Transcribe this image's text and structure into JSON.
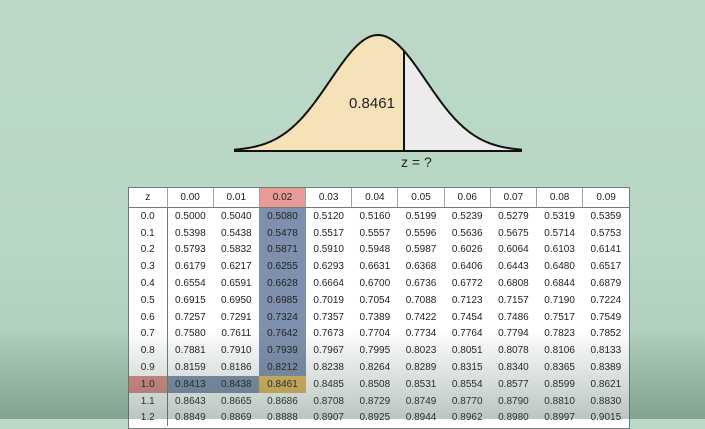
{
  "figure": {
    "area_value": "0.8461",
    "z_label": "z = ?",
    "colors": {
      "area_fill": "#f5e2b8",
      "tail_fill": "#ececec",
      "stroke": "#111111"
    }
  },
  "table": {
    "corner_label": "z",
    "columns": [
      "0.00",
      "0.01",
      "0.02",
      "0.03",
      "0.04",
      "0.05",
      "0.06",
      "0.07",
      "0.08",
      "0.09"
    ],
    "highlight_column": 2,
    "highlight_row": 10,
    "colors": {
      "highlight_band": "#7f8fae",
      "highlight_header": "#e89a96",
      "highlight_cell": "#e1b85e"
    },
    "rows": [
      {
        "z": "0.0",
        "values": [
          "0.5000",
          "0.5040",
          "0.5080",
          "0.5120",
          "0.5160",
          "0.5199",
          "0.5239",
          "0.5279",
          "0.5319",
          "0.5359"
        ]
      },
      {
        "z": "0.1",
        "values": [
          "0.5398",
          "0.5438",
          "0.5478",
          "0.5517",
          "0.5557",
          "0.5596",
          "0.5636",
          "0.5675",
          "0.5714",
          "0.5753"
        ]
      },
      {
        "z": "0.2",
        "values": [
          "0.5793",
          "0.5832",
          "0.5871",
          "0.5910",
          "0.5948",
          "0.5987",
          "0.6026",
          "0.6064",
          "0.6103",
          "0.6141"
        ]
      },
      {
        "z": "0.3",
        "values": [
          "0.6179",
          "0.6217",
          "0.6255",
          "0.6293",
          "0.6631",
          "0.6368",
          "0.6406",
          "0.6443",
          "0.6480",
          "0.6517"
        ]
      },
      {
        "z": "0.4",
        "values": [
          "0.6554",
          "0.6591",
          "0.6628",
          "0.6664",
          "0.6700",
          "0.6736",
          "0.6772",
          "0.6808",
          "0.6844",
          "0.6879"
        ]
      },
      {
        "z": "0.5",
        "values": [
          "0.6915",
          "0.6950",
          "0.6985",
          "0.7019",
          "0.7054",
          "0.7088",
          "0.7123",
          "0.7157",
          "0.7190",
          "0.7224"
        ]
      },
      {
        "z": "0.6",
        "values": [
          "0.7257",
          "0.7291",
          "0.7324",
          "0.7357",
          "0.7389",
          "0.7422",
          "0.7454",
          "0.7486",
          "0.7517",
          "0.7549"
        ]
      },
      {
        "z": "0.7",
        "values": [
          "0.7580",
          "0.7611",
          "0.7642",
          "0.7673",
          "0.7704",
          "0.7734",
          "0.7764",
          "0.7794",
          "0.7823",
          "0.7852"
        ]
      },
      {
        "z": "0.8",
        "values": [
          "0.7881",
          "0.7910",
          "0.7939",
          "0.7967",
          "0.7995",
          "0.8023",
          "0.8051",
          "0.8078",
          "0.8106",
          "0.8133"
        ]
      },
      {
        "z": "0.9",
        "values": [
          "0.8159",
          "0.8186",
          "0.8212",
          "0.8238",
          "0.8264",
          "0.8289",
          "0.8315",
          "0.8340",
          "0.8365",
          "0.8389"
        ]
      },
      {
        "z": "1.0",
        "values": [
          "0.8413",
          "0.8438",
          "0.8461",
          "0.8485",
          "0.8508",
          "0.8531",
          "0.8554",
          "0.8577",
          "0.8599",
          "0.8621"
        ]
      },
      {
        "z": "1.1",
        "values": [
          "0.8643",
          "0.8665",
          "0.8686",
          "0.8708",
          "0.8729",
          "0.8749",
          "0.8770",
          "0.8790",
          "0.8810",
          "0.8830"
        ]
      },
      {
        "z": "1.2",
        "values": [
          "0.8849",
          "0.8869",
          "0.8888",
          "0.8907",
          "0.8925",
          "0.8944",
          "0.8962",
          "0.8980",
          "0.8997",
          "0.9015"
        ]
      }
    ]
  }
}
